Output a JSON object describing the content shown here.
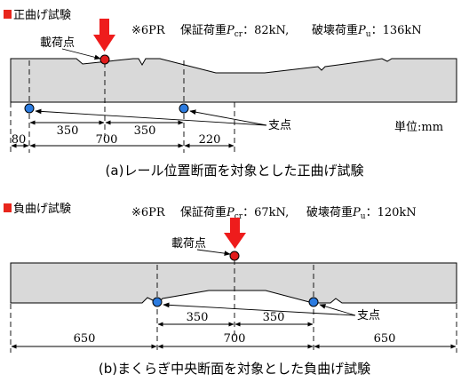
{
  "top": {
    "heading": "正曲げ試験",
    "specimen": "※6PR",
    "proof_label": "保証荷重",
    "proof_symbol": "P",
    "proof_sub": "cr",
    "proof_value": "：82kN,",
    "break_label": "破壊荷重",
    "break_symbol": "P",
    "break_sub": "u",
    "break_value": "：136kN",
    "load_label": "載荷点",
    "support_label": "支点",
    "unit_label": "単位:mm",
    "dims": [
      "350",
      "350",
      "80",
      "700",
      "220"
    ],
    "caption": "(a)レール位置断面を対象とした正曲げ試験"
  },
  "bottom": {
    "heading": "負曲げ試験",
    "specimen": "※6PR",
    "proof_label": "保証荷重",
    "proof_symbol": "P",
    "proof_sub": "cr",
    "proof_value": "：67kN,",
    "break_label": "破壊荷重",
    "break_symbol": "P",
    "break_sub": "u",
    "break_value": "：120kN",
    "load_label": "載荷点",
    "support_label": "支点",
    "dims": [
      "350",
      "350",
      "650",
      "700",
      "650"
    ],
    "caption": "(b)まくらぎ中央断面を対象とした負曲げ試験"
  },
  "colors": {
    "beam_fill": "#d9d9d9",
    "heading_square": "#e8261c",
    "load_arrow": "#ee1c1c",
    "load_point": "#e11b1b",
    "support_point": "#2b7be0"
  }
}
